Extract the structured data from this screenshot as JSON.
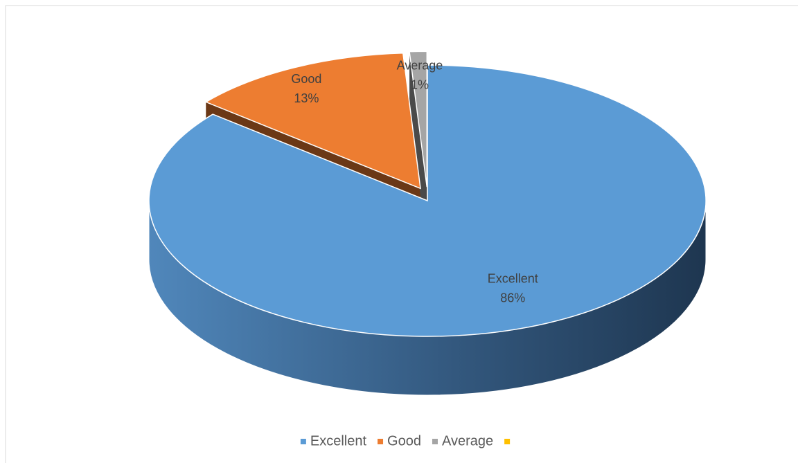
{
  "chart_data": {
    "type": "pie3d",
    "categories": [
      "Excellent",
      "Good",
      "Average",
      null
    ],
    "values": [
      86,
      13,
      1,
      0
    ],
    "value_labels": [
      "86%",
      "13%",
      "1%",
      null
    ],
    "colors": [
      "#5b9bd5",
      "#ed7d31",
      "#a5a5a5",
      "#ffc000"
    ],
    "legend": "bottom"
  }
}
